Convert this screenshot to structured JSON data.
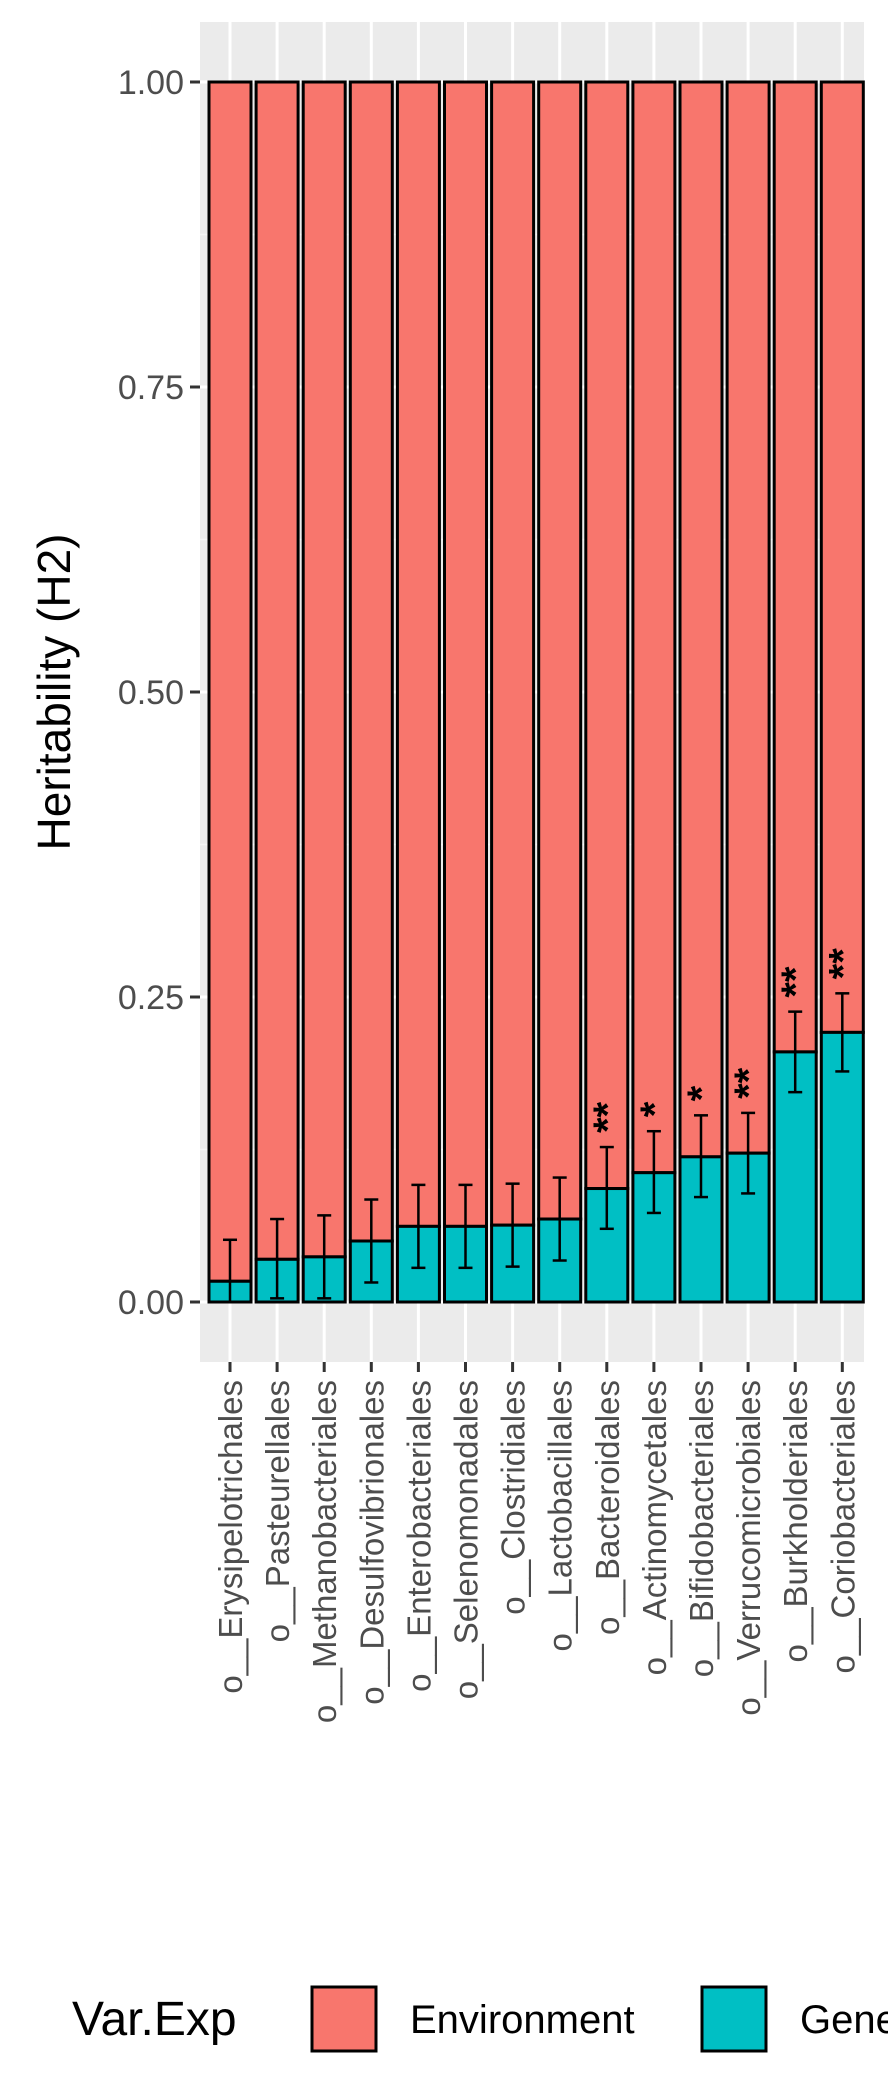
{
  "chart_data": {
    "type": "bar",
    "stacked": true,
    "ylabel": "Heritability (H2)",
    "xlabel": "",
    "ylim": [
      0,
      1
    ],
    "yticks": [
      "0.00",
      "0.25",
      "0.50",
      "0.75",
      "1.00"
    ],
    "grid": true,
    "legend_position": "bottom",
    "categories": [
      "o__Erysipelotrichales",
      "o__Pasteurellales",
      "o__Methanobacteriales",
      "o__Desulfovibrionales",
      "o__Enterobacteriales",
      "o__Selenomonadales",
      "o__Clostridiales",
      "o__Lactobacillales",
      "o__Bacteroidales",
      "o__Actinomycetales",
      "o__Bifidobacteriales",
      "o__Verrucomicrobiales",
      "o__Burkholderiales",
      "o__Coriobacteriales"
    ],
    "series": [
      {
        "name": "Genetics",
        "color": "#00BFC4",
        "values": [
          0.017,
          0.035,
          0.037,
          0.05,
          0.062,
          0.062,
          0.063,
          0.068,
          0.093,
          0.106,
          0.119,
          0.122,
          0.205,
          0.221
        ],
        "error_low": [
          0.0,
          0.003,
          0.003,
          0.016,
          0.028,
          0.028,
          0.029,
          0.034,
          0.06,
          0.073,
          0.086,
          0.089,
          0.172,
          0.189
        ],
        "error_high": [
          0.051,
          0.068,
          0.071,
          0.084,
          0.096,
          0.096,
          0.097,
          0.102,
          0.127,
          0.14,
          0.153,
          0.155,
          0.238,
          0.253
        ]
      },
      {
        "name": "Environment",
        "color": "#F8766D",
        "values": [
          0.983,
          0.965,
          0.963,
          0.95,
          0.938,
          0.938,
          0.937,
          0.932,
          0.907,
          0.894,
          0.881,
          0.878,
          0.795,
          0.779
        ]
      }
    ],
    "significance": [
      "",
      "",
      "",
      "",
      "",
      "",
      "",
      "",
      "**",
      "*",
      "*",
      "**",
      "**",
      "**"
    ],
    "legend": {
      "title": "Var.Exp",
      "entries": [
        "Environment",
        "Genetics"
      ]
    }
  },
  "colors": {
    "panel_background": "#EBEBEB",
    "grid_major": "#FFFFFF",
    "grid_minor": "#F5F5F5",
    "bar_outline": "#000000"
  }
}
